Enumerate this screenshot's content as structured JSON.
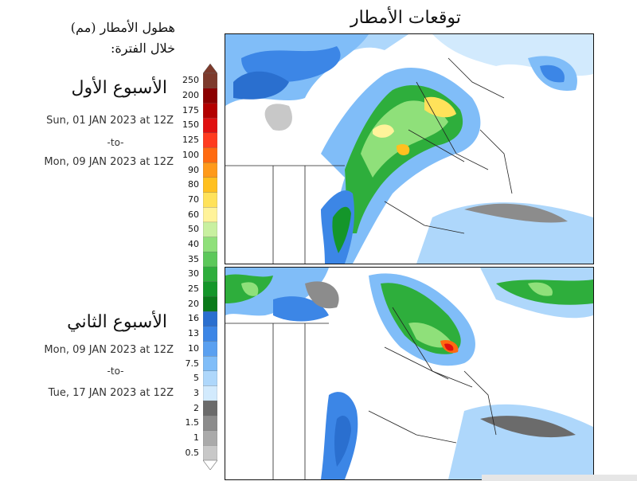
{
  "title": "توقعات الأمطار",
  "legend": {
    "heading_line1": "هطول الأمطار (مم)",
    "heading_line2": "خلال الفترة:",
    "levels": [
      "250",
      "200",
      "175",
      "150",
      "125",
      "100",
      "90",
      "80",
      "70",
      "60",
      "50",
      "40",
      "35",
      "30",
      "25",
      "20",
      "16",
      "13",
      "10",
      "7.5",
      "5",
      "3",
      "2",
      "1.5",
      "1",
      "0.5"
    ],
    "colors": [
      "#7d3a2c",
      "#8b0000",
      "#b30000",
      "#e01010",
      "#ff3b1f",
      "#ff6a10",
      "#ff9a1a",
      "#ffc020",
      "#ffe25a",
      "#fff39a",
      "#c8f0a0",
      "#8fe07a",
      "#5cc85a",
      "#2eae3c",
      "#14962a",
      "#0a7a1a",
      "#2a6fcf",
      "#3c86e6",
      "#5aa0f0",
      "#80bdf8",
      "#aed7fb",
      "#d2eafd",
      "#6b6b6b",
      "#8c8c8c",
      "#aaaaaa",
      "#c8c8c8"
    ]
  },
  "week1": {
    "title": "الأسبوع الأول",
    "start": "Sun, 01 JAN 2023 at 12Z",
    "to": "-to-",
    "end": "Mon, 09 JAN 2023 at 12Z"
  },
  "week2": {
    "title": "الأسبوع الثاني",
    "start": "Mon, 09 JAN 2023 at 12Z",
    "to": "-to-",
    "end": "Tue, 17 JAN 2023 at 12Z"
  }
}
